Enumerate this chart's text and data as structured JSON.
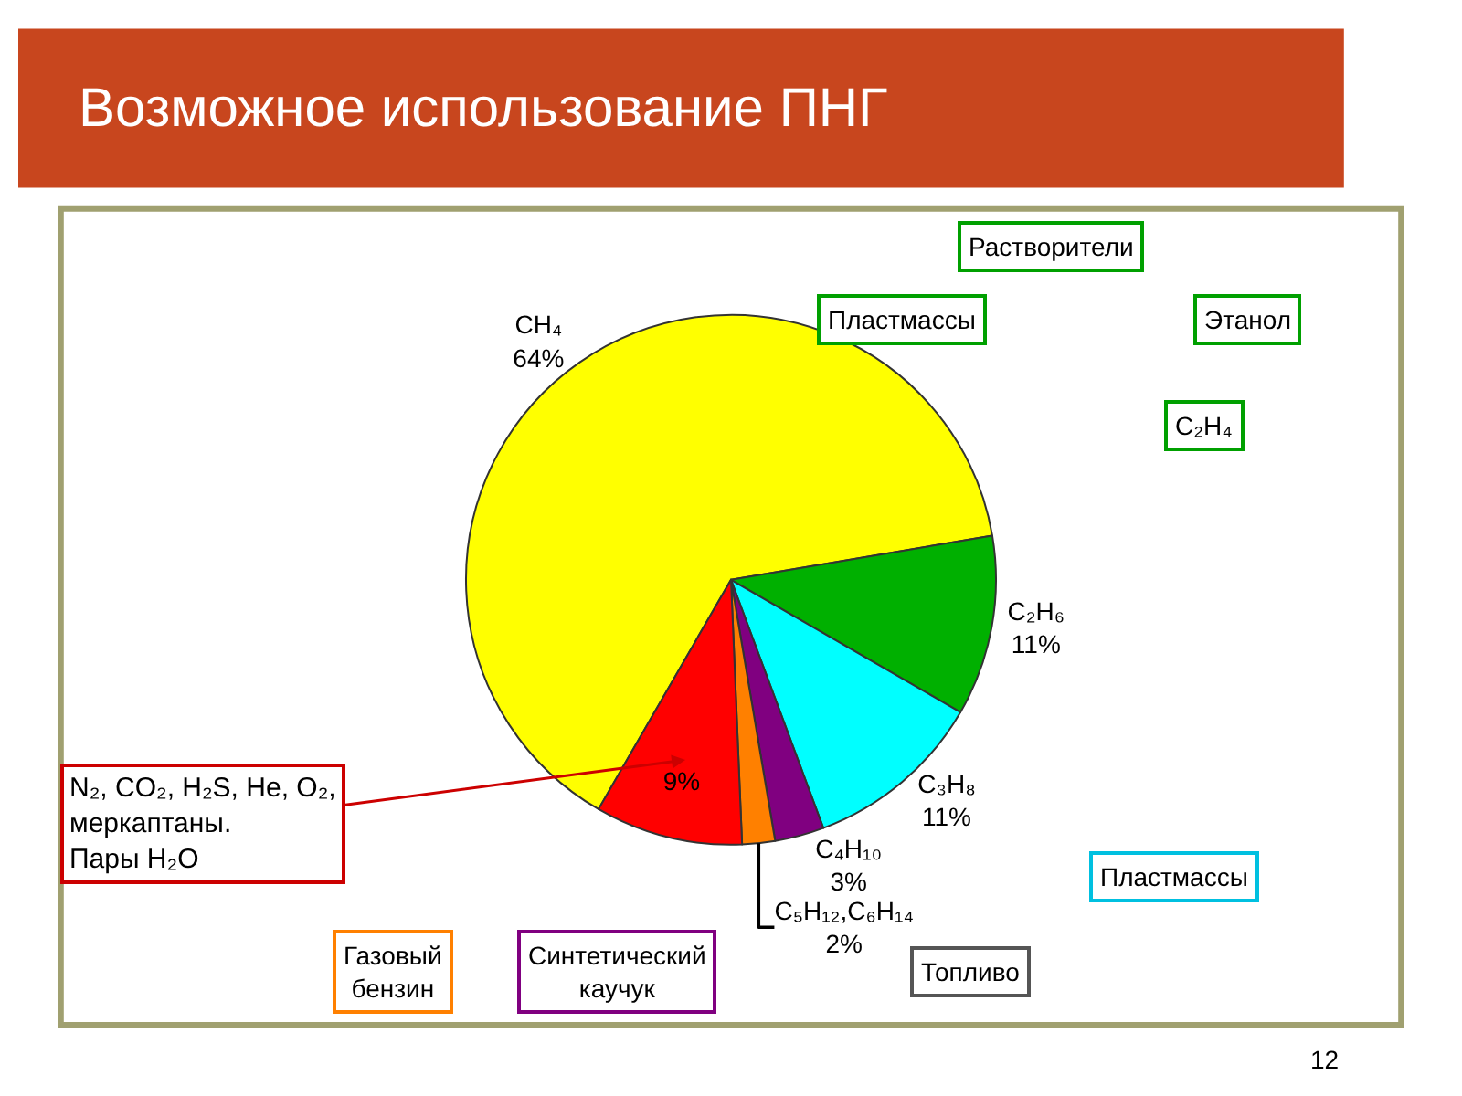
{
  "chart_data": {
    "type": "pie",
    "title": "Возможное использование ПНГ",
    "categories": [
      "CH₄",
      "C₂H₆",
      "C₃H₈",
      "C₄H₁₀",
      "C₅H₁₂,C₆H₁₄",
      "N₂, CO₂, H₂S, He, O₂,меркаптаны. Пары H₂O"
    ],
    "values": [
      64,
      11,
      11,
      3,
      2,
      9
    ],
    "value_labels": [
      "64%",
      "11%",
      "11%",
      "3%",
      "2%",
      "9%"
    ],
    "colors": [
      "#ffff00",
      "#00b000",
      "#00ffff",
      "#800080",
      "#ff8000",
      "#ff0000"
    ],
    "annotations": [
      "Растворители",
      "Пластмассы",
      "Этанол",
      "C₂H₄",
      "Пластмассы",
      "Топливо",
      "Газовый бензин",
      "Синтетический каучук",
      "12"
    ]
  }
}
